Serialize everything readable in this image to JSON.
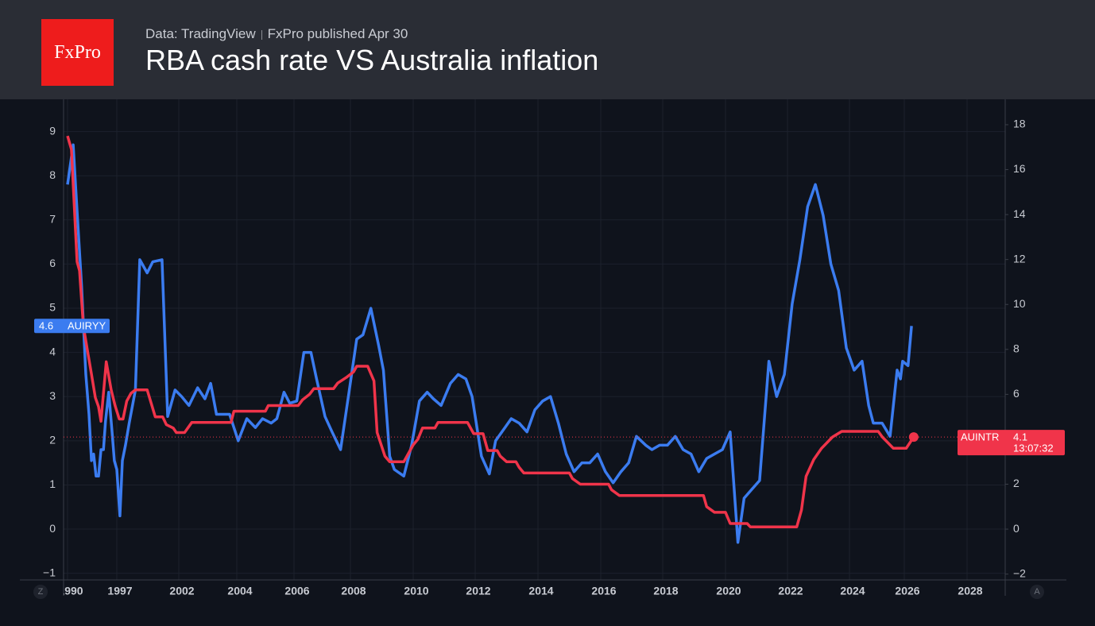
{
  "header": {
    "logo": "FxPro",
    "source": "Data: TradingView",
    "published": "FxPro published Apr 30"
  },
  "chart_data": {
    "type": "line",
    "title": "RBA cash rate VS Australia inflation",
    "xlim": [
      1989.44,
      2029.2
    ],
    "xticks": [
      1990,
      1997,
      2002,
      2004,
      2006,
      2008,
      2010,
      2012,
      2014,
      2016,
      2018,
      2020,
      2022,
      2024,
      2026,
      2028
    ],
    "ylim": [
      -1.15,
      9.73
    ],
    "yticks": [
      {
        "value": -1,
        "label": "−1"
      },
      0,
      1,
      2,
      3,
      4,
      5,
      6,
      7,
      8,
      9
    ],
    "y2lim": [
      -2.26,
      19.13
    ],
    "y2ticks": [
      {
        "value": -2,
        "label": "−2"
      },
      0,
      2,
      4,
      6,
      8,
      10,
      12,
      14,
      16,
      18
    ],
    "grid": true,
    "countdown": "13:07:32",
    "left_button": "Z",
    "right_button": "A",
    "series": [
      {
        "name": "AUIRYY",
        "color": "#3b7cf0",
        "x": [
          1990.0,
          1990.8,
          1991.35,
          1992.0,
          1992.6,
          1993.05,
          1993.4,
          1993.7,
          1994.05,
          1994.4,
          1994.75,
          1995.1,
          1995.4,
          1995.85,
          1996.3,
          1996.65,
          1997.0,
          1997.25,
          1997.45,
          1997.7,
          1998.0,
          1998.5,
          1998.85,
          1999.45,
          1999.9,
          2000.65,
          2001.1,
          2001.7,
          2002.1,
          2002.35,
          2002.65,
          2002.9,
          2003.1,
          2003.3,
          2003.75,
          2004.05,
          2004.35,
          2004.65,
          2004.9,
          2005.2,
          2005.4,
          2005.65,
          2005.85,
          2006.1,
          2006.35,
          2006.6,
          2006.8,
          2007.1,
          2007.35,
          2007.65,
          2007.95,
          2008.2,
          2008.4,
          2008.65,
          2008.9,
          2009.05,
          2009.25,
          2009.4,
          2009.7,
          2009.95,
          2010.2,
          2010.45,
          2010.65,
          2010.9,
          2011.2,
          2011.45,
          2011.7,
          2011.9,
          2012.2,
          2012.45,
          2012.65,
          2012.9,
          2013.15,
          2013.4,
          2013.65,
          2013.9,
          2014.15,
          2014.4,
          2014.65,
          2014.9,
          2015.15,
          2015.4,
          2015.65,
          2015.9,
          2016.15,
          2016.4,
          2016.65,
          2016.9,
          2017.15,
          2017.45,
          2017.65,
          2017.9,
          2018.15,
          2018.4,
          2018.65,
          2018.9,
          2019.15,
          2019.4,
          2019.65,
          2019.9,
          2020.15,
          2020.4,
          2020.6,
          2020.85,
          2021.1,
          2021.4,
          2021.65,
          2021.9,
          2022.15,
          2022.4,
          2022.65,
          2022.9,
          2023.15,
          2023.4,
          2023.65,
          2023.9,
          2024.17,
          2024.46,
          2024.7,
          2024.87,
          2025.19,
          2025.48,
          2025.74,
          2025.86,
          2025.94,
          2026.12,
          2026.23
        ],
        "values": [
          7.8,
          8.7,
          7.2,
          5.5,
          3.5,
          2.6,
          1.55,
          1.7,
          1.2,
          1.2,
          1.8,
          1.8,
          2.45,
          3.1,
          2.25,
          1.55,
          1.35,
          0.3,
          1.55,
          1.9,
          2.4,
          3.15,
          6.1,
          5.8,
          6.05,
          6.1,
          2.55,
          3.15,
          3.0,
          2.8,
          3.2,
          2.95,
          3.3,
          2.6,
          2.6,
          2.0,
          2.5,
          2.3,
          2.5,
          2.4,
          2.5,
          3.1,
          2.85,
          2.9,
          4.0,
          4.0,
          3.4,
          2.55,
          2.2,
          1.8,
          3.1,
          4.3,
          4.4,
          5.0,
          4.15,
          3.6,
          1.65,
          1.35,
          1.2,
          1.9,
          2.9,
          3.1,
          2.95,
          2.8,
          3.3,
          3.5,
          3.4,
          3.0,
          1.65,
          1.25,
          2.0,
          2.25,
          2.5,
          2.4,
          2.2,
          2.7,
          2.9,
          3.0,
          2.4,
          1.7,
          1.3,
          1.5,
          1.5,
          1.7,
          1.3,
          1.05,
          1.3,
          1.5,
          2.1,
          1.9,
          1.8,
          1.9,
          1.9,
          2.1,
          1.8,
          1.7,
          1.3,
          1.6,
          1.7,
          1.8,
          2.2,
          -0.3,
          0.7,
          0.9,
          1.1,
          3.8,
          3.0,
          3.5,
          5.1,
          6.1,
          7.3,
          7.8,
          7.1,
          6.0,
          5.4,
          4.1,
          3.6,
          3.8,
          2.8,
          2.4,
          2.4,
          2.1,
          3.6,
          3.4,
          3.8,
          3.7,
          4.6
        ]
      },
      {
        "name": "AUINTR",
        "color": "#f0344a",
        "axis": "y2",
        "x": [
          1990.0,
          1990.55,
          1991.35,
          1991.7,
          1992.25,
          1992.8,
          1993.4,
          1993.95,
          1994.4,
          1994.75,
          1995.5,
          1996.2,
          1996.75,
          1997.2,
          1997.5,
          1997.8,
          1998.15,
          1998.5,
          1999.45,
          2000.1,
          2000.7,
          2001.0,
          2001.55,
          2001.8,
          2002.2,
          2002.45,
          2003.8,
          2003.9,
          2005.0,
          2005.1,
          2006.15,
          2006.3,
          2006.55,
          2006.7,
          2007.4,
          2007.55,
          2007.85,
          2008.1,
          2008.2,
          2008.55,
          2008.75,
          2008.85,
          2009.1,
          2009.25,
          2009.7,
          2009.8,
          2010.0,
          2010.15,
          2010.3,
          2010.7,
          2010.8,
          2011.75,
          2011.95,
          2012.25,
          2012.4,
          2012.7,
          2012.8,
          2013.0,
          2013.3,
          2013.4,
          2013.55,
          2015.0,
          2015.1,
          2015.35,
          2016.25,
          2016.35,
          2016.6,
          2019.3,
          2019.4,
          2019.65,
          2020.0,
          2020.15,
          2020.7,
          2020.8,
          2022.3,
          2022.45,
          2022.6,
          2022.85,
          2023.1,
          2023.45,
          2023.75,
          2025.05,
          2025.2,
          2025.4,
          2025.6,
          2026.06,
          2026.3
        ],
        "values": [
          17.5,
          16.9,
          11.9,
          11.5,
          9.05,
          8.0,
          6.9,
          5.85,
          5.45,
          4.8,
          7.45,
          6.2,
          5.5,
          4.9,
          4.9,
          5.7,
          6.05,
          6.2,
          6.2,
          5.0,
          5.0,
          4.65,
          4.5,
          4.3,
          4.3,
          4.75,
          4.75,
          5.25,
          5.25,
          5.5,
          5.5,
          5.75,
          6.0,
          6.25,
          6.25,
          6.5,
          6.75,
          7.0,
          7.25,
          7.25,
          6.6,
          4.3,
          3.25,
          3.0,
          3.0,
          3.25,
          3.75,
          4.0,
          4.5,
          4.5,
          4.75,
          4.75,
          4.25,
          4.25,
          3.5,
          3.5,
          3.25,
          3.0,
          3.0,
          2.75,
          2.5,
          2.5,
          2.25,
          2.0,
          2.0,
          1.75,
          1.5,
          1.5,
          1.0,
          0.75,
          0.75,
          0.25,
          0.25,
          0.1,
          0.1,
          0.85,
          2.35,
          3.1,
          3.6,
          4.1,
          4.35,
          4.35,
          4.1,
          3.85,
          3.6,
          3.6,
          4.1
        ]
      }
    ]
  }
}
